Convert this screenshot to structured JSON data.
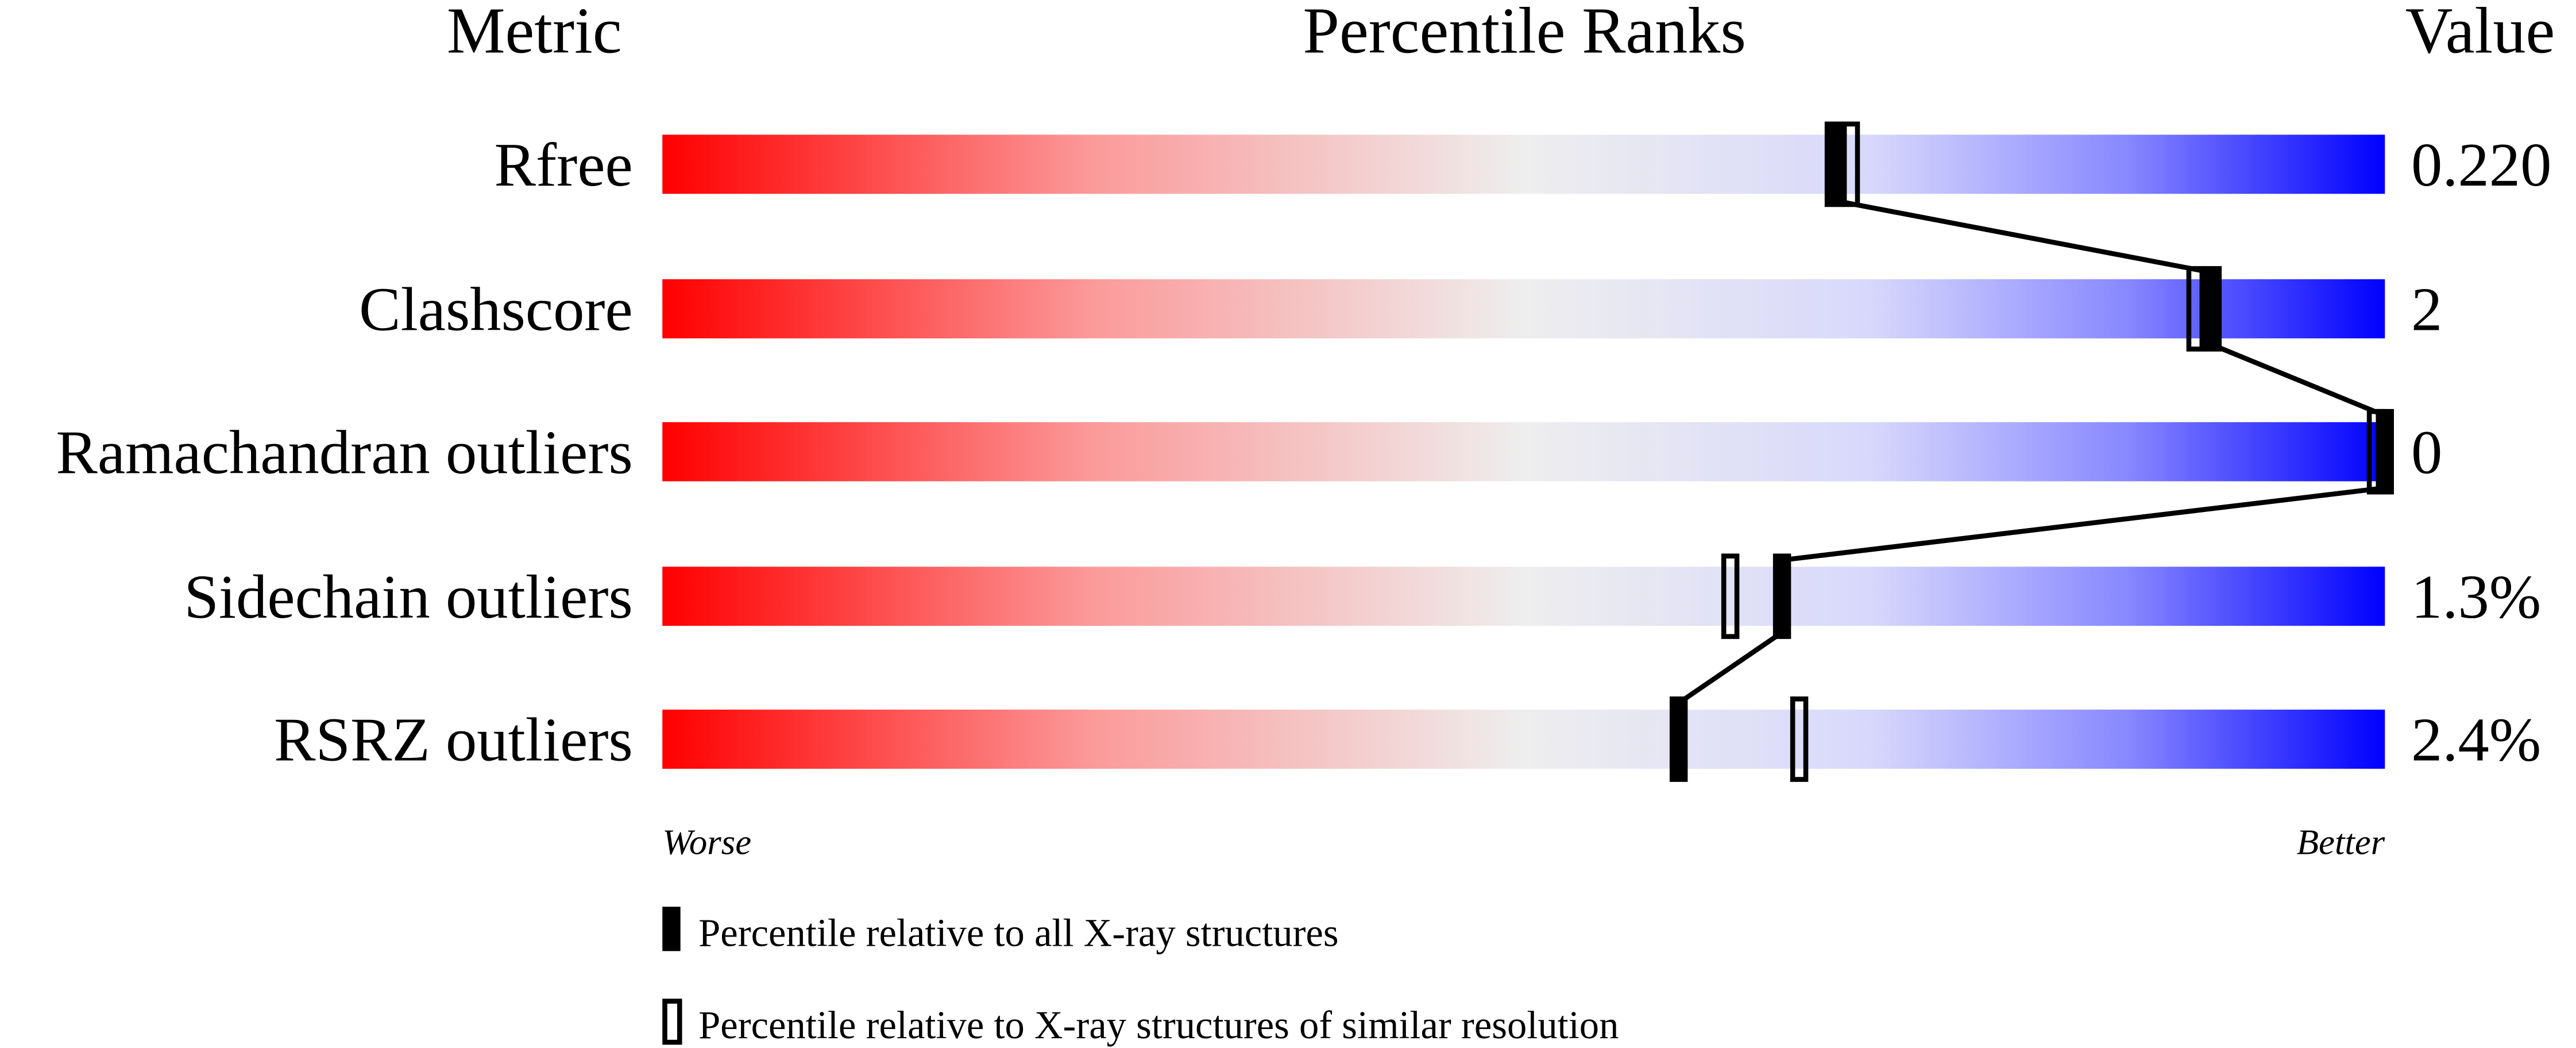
{
  "chart_data": {
    "type": "percentile-slider",
    "headers": {
      "metric": "Metric",
      "ranks": "Percentile Ranks",
      "value": "Value"
    },
    "xlim": [
      0,
      100
    ],
    "axis_labels": {
      "left": "Worse",
      "right": "Better"
    },
    "colors": {
      "worse": "#ff0000",
      "middle": "#eeeeee",
      "better": "#0000ff"
    },
    "metrics": [
      {
        "name": "Rfree",
        "value": "0.220",
        "percentile_all": 68,
        "percentile_similar": 69
      },
      {
        "name": "Clashscore",
        "value": "2",
        "percentile_all": 90,
        "percentile_similar": 89
      },
      {
        "name": "Ramachandran outliers",
        "value": "0",
        "percentile_all": 100,
        "percentile_similar": 100
      },
      {
        "name": "Sidechain outliers",
        "value": "1.3%",
        "percentile_all": 65,
        "percentile_similar": 62
      },
      {
        "name": "RSRZ outliers",
        "value": "2.4%",
        "percentile_all": 59,
        "percentile_similar": 66
      }
    ],
    "legend": [
      {
        "marker": "filled",
        "label": "Percentile relative to all X-ray structures"
      },
      {
        "marker": "open",
        "label": "Percentile relative to X-ray structures of similar resolution"
      }
    ]
  }
}
